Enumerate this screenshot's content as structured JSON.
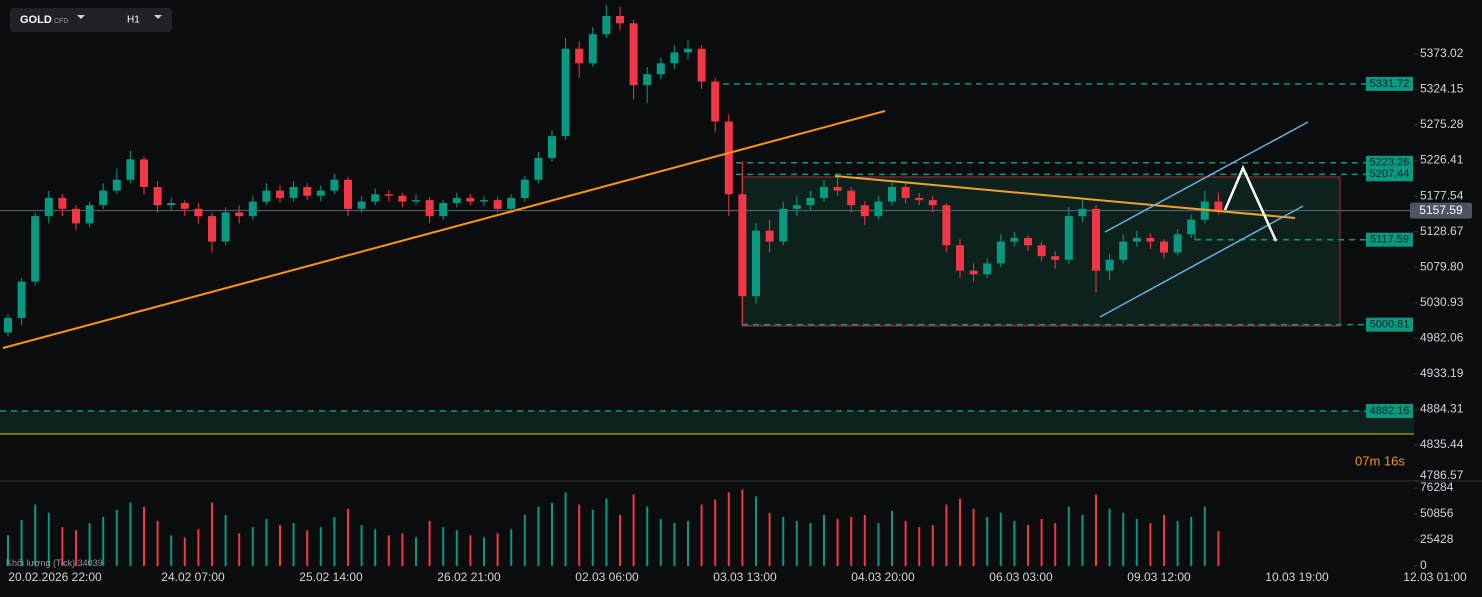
{
  "chart_data": {
    "type": "candlestick",
    "symbol": "GOLD",
    "instrument": "CFD",
    "timeframe": "H1",
    "up_color": "#089981",
    "down_color": "#f23645",
    "ylim": [
      4786,
      5447
    ],
    "yticks": [
      5373.02,
      5324.15,
      5275.28,
      5226.41,
      5177.54,
      5128.67,
      {
        "value": 5079.8,
        "label": "5079.80"
      },
      5030.93,
      4982.06,
      4933.19,
      4884.31,
      4835.44,
      4786.57
    ],
    "x_labels": [
      "20.02.2026 22:00",
      "24.02 07:00",
      "25.02 14:00",
      "26.02 21:00",
      "02.03 06:00",
      "03.03 13:00",
      "04.03 20:00",
      "06.03 03:00",
      "09.03 12:00",
      "10.03 19:00",
      "12.03 01:00"
    ],
    "candles": [
      [
        4990,
        5015,
        4985,
        5010
      ],
      [
        5010,
        5065,
        5000,
        5060
      ],
      [
        5060,
        5155,
        5055,
        5150
      ],
      [
        5150,
        5185,
        5140,
        5175
      ],
      [
        5175,
        5180,
        5150,
        5160
      ],
      [
        5160,
        5165,
        5130,
        5140
      ],
      [
        5140,
        5170,
        5135,
        5165
      ],
      [
        5165,
        5195,
        5160,
        5185
      ],
      [
        5185,
        5215,
        5180,
        5200
      ],
      [
        5200,
        5240,
        5195,
        5228
      ],
      [
        5228,
        5232,
        5180,
        5190
      ],
      [
        5190,
        5198,
        5155,
        5165
      ],
      [
        5165,
        5175,
        5158,
        5168
      ],
      [
        5168,
        5172,
        5150,
        5160
      ],
      [
        5160,
        5168,
        5140,
        5150
      ],
      [
        5150,
        5155,
        5100,
        5115
      ],
      [
        5115,
        5162,
        5110,
        5155
      ],
      [
        5155,
        5165,
        5140,
        5150
      ],
      [
        5150,
        5178,
        5145,
        5170
      ],
      [
        5170,
        5195,
        5165,
        5185
      ],
      [
        5185,
        5192,
        5168,
        5175
      ],
      [
        5175,
        5198,
        5170,
        5190
      ],
      [
        5190,
        5195,
        5172,
        5178
      ],
      [
        5178,
        5192,
        5170,
        5185
      ],
      [
        5185,
        5208,
        5180,
        5200
      ],
      [
        5200,
        5204,
        5150,
        5160
      ],
      [
        5160,
        5178,
        5155,
        5170
      ],
      [
        5170,
        5188,
        5165,
        5180
      ],
      [
        5180,
        5186,
        5170,
        5178
      ],
      [
        5178,
        5182,
        5162,
        5170
      ],
      [
        5170,
        5180,
        5165,
        5172
      ],
      [
        5172,
        5176,
        5140,
        5150
      ],
      [
        5150,
        5172,
        5145,
        5168
      ],
      [
        5168,
        5182,
        5162,
        5175
      ],
      [
        5175,
        5180,
        5165,
        5170
      ],
      [
        5170,
        5178,
        5164,
        5172
      ],
      [
        5172,
        5176,
        5155,
        5160
      ],
      [
        5160,
        5180,
        5156,
        5175
      ],
      [
        5175,
        5205,
        5170,
        5200
      ],
      [
        5200,
        5238,
        5195,
        5230
      ],
      [
        5230,
        5268,
        5225,
        5260
      ],
      [
        5260,
        5395,
        5255,
        5380
      ],
      [
        5380,
        5390,
        5340,
        5360
      ],
      [
        5360,
        5410,
        5355,
        5400
      ],
      [
        5400,
        5440,
        5395,
        5425
      ],
      [
        5425,
        5438,
        5405,
        5415
      ],
      [
        5415,
        5420,
        5310,
        5330
      ],
      [
        5330,
        5355,
        5305,
        5345
      ],
      [
        5345,
        5368,
        5338,
        5360
      ],
      [
        5360,
        5385,
        5352,
        5375
      ],
      [
        5375,
        5392,
        5365,
        5380
      ],
      [
        5380,
        5385,
        5325,
        5335
      ],
      [
        5335,
        5340,
        5265,
        5280
      ],
      [
        5280,
        5290,
        5150,
        5180
      ],
      [
        5180,
        5225,
        5000,
        5040
      ],
      [
        5040,
        5140,
        5030,
        5130
      ],
      [
        5130,
        5145,
        5100,
        5115
      ],
      [
        5115,
        5170,
        5110,
        5160
      ],
      [
        5160,
        5178,
        5150,
        5165
      ],
      [
        5165,
        5185,
        5158,
        5175
      ],
      [
        5175,
        5200,
        5170,
        5190
      ],
      [
        5190,
        5205,
        5178,
        5185
      ],
      [
        5185,
        5190,
        5155,
        5165
      ],
      [
        5165,
        5170,
        5138,
        5150
      ],
      [
        5150,
        5178,
        5145,
        5170
      ],
      [
        5170,
        5198,
        5165,
        5190
      ],
      [
        5190,
        5195,
        5168,
        5175
      ],
      [
        5175,
        5182,
        5165,
        5172
      ],
      [
        5172,
        5178,
        5155,
        5165
      ],
      [
        5165,
        5168,
        5100,
        5110
      ],
      [
        5110,
        5118,
        5065,
        5075
      ],
      [
        5075,
        5085,
        5060,
        5070
      ],
      [
        5070,
        5092,
        5065,
        5085
      ],
      [
        5085,
        5125,
        5080,
        5115
      ],
      [
        5115,
        5128,
        5108,
        5120
      ],
      [
        5120,
        5124,
        5102,
        5110
      ],
      [
        5110,
        5115,
        5088,
        5095
      ],
      [
        5095,
        5102,
        5078,
        5090
      ],
      [
        5090,
        5162,
        5085,
        5150
      ],
      [
        5150,
        5172,
        5142,
        5160
      ],
      [
        5160,
        5165,
        5045,
        5075
      ],
      [
        5075,
        5098,
        5062,
        5090
      ],
      [
        5090,
        5125,
        5085,
        5115
      ],
      [
        5115,
        5130,
        5108,
        5120
      ],
      [
        5120,
        5126,
        5105,
        5115
      ],
      [
        5115,
        5118,
        5092,
        5100
      ],
      [
        5100,
        5132,
        5096,
        5125
      ],
      [
        5125,
        5152,
        5120,
        5145
      ],
      [
        5145,
        5185,
        5140,
        5170
      ],
      [
        5170,
        5182,
        5152,
        5157.59
      ]
    ],
    "volume_label": "Khối lượng (Tick)",
    "volume_current": 34039,
    "volume_ylim": [
      0,
      81170
    ],
    "volume_yticks": [
      76284,
      50856,
      25428,
      0
    ],
    "volumes": [
      30000,
      45000,
      60000,
      52000,
      38000,
      35000,
      42000,
      48000,
      55000,
      62000,
      58000,
      44000,
      30000,
      28000,
      36000,
      62000,
      50000,
      32000,
      38000,
      46000,
      40000,
      42000,
      35000,
      38000,
      48000,
      56000,
      40000,
      36000,
      30000,
      32000,
      28000,
      44000,
      38000,
      35000,
      30000,
      28000,
      32000,
      36000,
      50000,
      58000,
      62000,
      72000,
      60000,
      55000,
      66000,
      50000,
      70000,
      58000,
      46000,
      42000,
      44000,
      60000,
      65000,
      72000,
      75000,
      68000,
      52000,
      48000,
      44000,
      42000,
      50000,
      46000,
      48000,
      50000,
      42000,
      54000,
      44000,
      38000,
      40000,
      60000,
      66000,
      56000,
      48000,
      52000,
      44000,
      40000,
      46000,
      42000,
      58000,
      50000,
      70000,
      56000,
      52000,
      46000,
      42000,
      50000,
      44000,
      48000,
      58000,
      34039
    ],
    "last_price": 5157.59,
    "levels": [
      5331.72,
      5223.26,
      5207.44,
      5117.59,
      5000.81,
      4882.16
    ],
    "timer": "07m 16s"
  }
}
